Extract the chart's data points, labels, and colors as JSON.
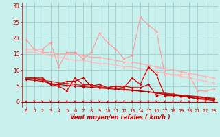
{
  "background_color": "#c8f0ec",
  "grid_color": "#a0cccc",
  "x_labels": [
    "0",
    "1",
    "2",
    "3",
    "4",
    "5",
    "6",
    "7",
    "8",
    "9",
    "10",
    "11",
    "12",
    "13",
    "14",
    "15",
    "16",
    "17",
    "18",
    "19",
    "20",
    "21",
    "22",
    "23"
  ],
  "x_values": [
    0,
    1,
    2,
    3,
    4,
    5,
    6,
    7,
    8,
    9,
    10,
    11,
    12,
    13,
    14,
    15,
    16,
    17,
    18,
    19,
    20,
    21,
    22,
    23
  ],
  "xlabel": "Vent moyen/en rafales ( km/h )",
  "ylabel_ticks": [
    0,
    5,
    10,
    15,
    20,
    25,
    30
  ],
  "ylim": [
    -1.5,
    31
  ],
  "xlim": [
    -0.5,
    23.5
  ],
  "line_spiky": {
    "y": [
      19.5,
      16.5,
      16.5,
      18.5,
      11.0,
      15.5,
      15.5,
      13.5,
      15.5,
      21.5,
      18.5,
      16.5,
      13.5,
      14.5,
      26.5,
      24.0,
      22.0,
      8.5,
      8.5,
      8.5,
      8.5,
      3.5,
      3.5,
      4.0
    ],
    "color": "#ff9999",
    "lw": 0.8,
    "marker": "D",
    "ms": 2.0
  },
  "line_upper_trend1": {
    "y": [
      16.5,
      16.5,
      15.5,
      15.5,
      15.0,
      15.0,
      15.0,
      14.5,
      14.0,
      14.0,
      13.5,
      13.0,
      12.5,
      12.5,
      12.0,
      11.5,
      11.0,
      10.5,
      10.0,
      9.5,
      9.0,
      8.5,
      8.0,
      7.5
    ],
    "color": "#ffaaaa",
    "lw": 0.9,
    "marker": "D",
    "ms": 2.0
  },
  "line_upper_trend2": {
    "y": [
      15.5,
      15.5,
      15.0,
      14.5,
      14.0,
      13.5,
      13.0,
      13.0,
      12.5,
      12.0,
      12.0,
      11.5,
      11.0,
      11.0,
      10.5,
      10.0,
      9.5,
      9.0,
      8.5,
      8.0,
      7.5,
      7.0,
      6.5,
      6.0
    ],
    "color": "#ffbbbb",
    "lw": 0.9,
    "marker": "D",
    "ms": 2.0
  },
  "line_lower_spiky": {
    "y": [
      7.5,
      7.5,
      7.5,
      5.5,
      5.0,
      3.5,
      7.5,
      5.5,
      5.5,
      4.5,
      4.5,
      5.0,
      4.5,
      7.5,
      5.5,
      11.0,
      8.5,
      2.0,
      2.0,
      2.0,
      1.5,
      1.0,
      0.8,
      0.5
    ],
    "color": "#dd0000",
    "lw": 0.9,
    "marker": "D",
    "ms": 2.0
  },
  "line_lower_trend1": {
    "y": [
      7.5,
      7.5,
      7.0,
      5.5,
      5.5,
      6.5,
      6.5,
      7.5,
      5.0,
      5.5,
      4.5,
      5.0,
      5.0,
      4.5,
      4.5,
      5.5,
      2.0,
      2.5,
      2.5,
      1.8,
      1.5,
      1.2,
      1.0,
      0.8
    ],
    "color": "#cc0000",
    "lw": 0.9,
    "marker": "D",
    "ms": 2.0
  },
  "line_lower_trend2": {
    "y": [
      7.5,
      7.2,
      6.8,
      6.5,
      6.0,
      5.8,
      5.5,
      5.2,
      5.0,
      4.8,
      4.5,
      4.3,
      4.0,
      3.8,
      3.5,
      3.2,
      3.0,
      2.8,
      2.5,
      2.2,
      2.0,
      1.8,
      1.5,
      1.2
    ],
    "color": "#cc2222",
    "lw": 0.9,
    "marker": "D",
    "ms": 1.8
  },
  "line_lower_flat": {
    "y": [
      7.0,
      6.8,
      6.5,
      5.8,
      5.5,
      5.2,
      5.0,
      4.8,
      4.6,
      4.4,
      4.2,
      4.0,
      3.8,
      3.6,
      3.4,
      3.2,
      2.8,
      2.5,
      2.2,
      2.0,
      1.8,
      1.6,
      1.3,
      1.0
    ],
    "color": "#bb0000",
    "lw": 0.9,
    "marker": "D",
    "ms": 1.8
  },
  "arrow_color": "#cc0000",
  "tick_color": "#cc0000",
  "label_color": "#cc0000"
}
